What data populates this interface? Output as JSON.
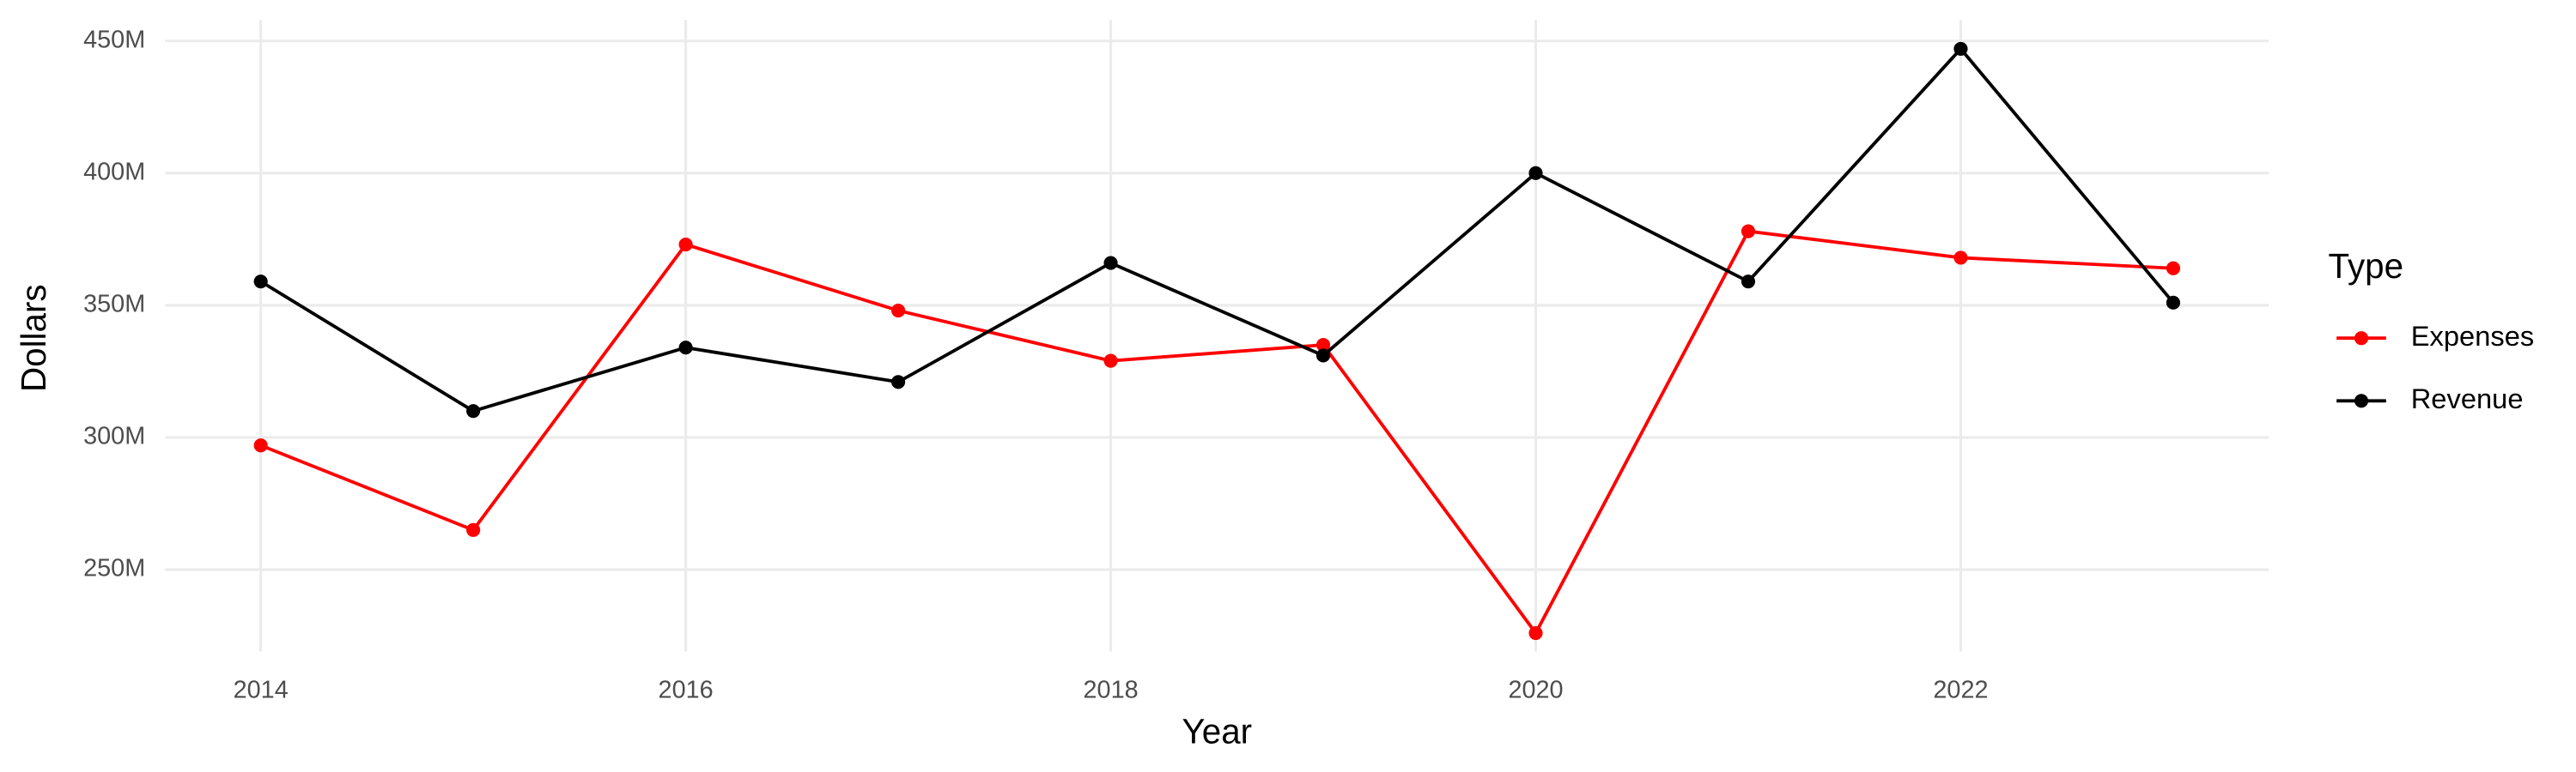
{
  "chart_data": {
    "type": "line",
    "x_label": "Year",
    "y_label": "Dollars",
    "legend_title": "Type",
    "legend_position": "right",
    "grid": true,
    "x": [
      2014,
      2015,
      2016,
      2017,
      2018,
      2019,
      2020,
      2021,
      2022,
      2023
    ],
    "series": [
      {
        "name": "Expenses",
        "color": "#ff0000",
        "values": [
          297000000,
          265000000,
          373000000,
          348000000,
          329000000,
          335000000,
          226000000,
          378000000,
          368000000,
          364000000
        ]
      },
      {
        "name": "Revenue",
        "color": "#000000",
        "values": [
          359000000,
          310000000,
          334000000,
          321000000,
          366000000,
          331000000,
          400000000,
          359000000,
          447000000,
          351000000
        ]
      }
    ],
    "xlim": [
      2013.55,
      2023.45
    ],
    "xticks": [
      2014,
      2016,
      2018,
      2020,
      2022
    ],
    "ylim": [
      219000000,
      458000000
    ],
    "yticks": [
      {
        "value": 250000000,
        "label": "250M"
      },
      {
        "value": 300000000,
        "label": "300M"
      },
      {
        "value": 350000000,
        "label": "350M"
      },
      {
        "value": 400000000,
        "label": "400M"
      },
      {
        "value": 450000000,
        "label": "450M"
      }
    ]
  }
}
